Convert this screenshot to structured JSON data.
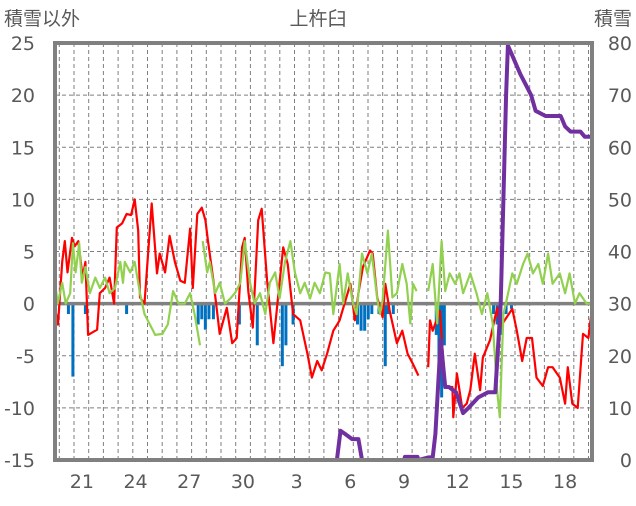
{
  "chart_data": {
    "type": "line",
    "title": "上杵臼",
    "left_axis_label": "積雪以外",
    "right_axis_label": "積雪",
    "ylim_left": [
      -15,
      25
    ],
    "yticks_left": [
      25,
      20,
      15,
      10,
      5,
      0,
      -5,
      -10,
      -15
    ],
    "ylim_right": [
      0,
      80
    ],
    "yticks_right": [
      80,
      70,
      60,
      50,
      40,
      30,
      20,
      10,
      0
    ],
    "xlim_days": [
      0,
      30
    ],
    "x_tick_labels": [
      {
        "label": "21",
        "day": 1.5
      },
      {
        "label": "24",
        "day": 4.5
      },
      {
        "label": "27",
        "day": 7.5
      },
      {
        "label": "30",
        "day": 10.5
      },
      {
        "label": "3",
        "day": 13.5
      },
      {
        "label": "6",
        "day": 16.5
      },
      {
        "label": "9",
        "day": 19.5
      },
      {
        "label": "12",
        "day": 22.5
      },
      {
        "label": "15",
        "day": 25.5
      },
      {
        "label": "18",
        "day": 28.5
      }
    ],
    "grid": true,
    "colors": {
      "red": "#ff0000",
      "green": "#92d050",
      "blue": "#0070c0",
      "purple": "#7030a0",
      "frame": "#808080"
    },
    "series": [
      {
        "name": "red",
        "axis": "left",
        "type": "line",
        "points": [
          [
            0,
            -0.4
          ],
          [
            0.17,
            -2
          ],
          [
            0.4,
            4
          ],
          [
            0.55,
            6
          ],
          [
            0.7,
            3
          ],
          [
            0.95,
            6.3
          ],
          [
            1.1,
            5.5
          ],
          [
            1.3,
            6
          ],
          [
            1.55,
            2.5
          ],
          [
            1.7,
            4
          ],
          [
            1.85,
            -3
          ],
          [
            2.05,
            -2.8
          ],
          [
            2.35,
            -2.5
          ],
          [
            2.5,
            1
          ],
          [
            2.8,
            1.5
          ],
          [
            3.05,
            2.5
          ],
          [
            3.3,
            0
          ],
          [
            3.45,
            7.3
          ],
          [
            3.75,
            7.7
          ],
          [
            4.0,
            8.6
          ],
          [
            4.25,
            8.5
          ],
          [
            4.45,
            10
          ],
          [
            4.65,
            7
          ],
          [
            4.75,
            0.6
          ],
          [
            5.0,
            0
          ],
          [
            5.4,
            9.6
          ],
          [
            5.7,
            2.9
          ],
          [
            5.85,
            4.8
          ],
          [
            6.15,
            3
          ],
          [
            6.4,
            6.5
          ],
          [
            6.7,
            4
          ],
          [
            7.0,
            2.2
          ],
          [
            7.25,
            2
          ],
          [
            7.55,
            7.2
          ],
          [
            7.7,
            1.5
          ],
          [
            7.95,
            8.6
          ],
          [
            8.2,
            9.2
          ],
          [
            8.4,
            8
          ],
          [
            8.55,
            6
          ],
          [
            8.85,
            2.2
          ],
          [
            9.2,
            -2.9
          ],
          [
            9.6,
            -0.4
          ],
          [
            9.9,
            -3.8
          ],
          [
            10.15,
            -3.3
          ],
          [
            10.45,
            5.4
          ],
          [
            10.6,
            6.3
          ],
          [
            10.8,
            1.2
          ],
          [
            11.05,
            -2.3
          ],
          [
            11.35,
            8
          ],
          [
            11.55,
            9.1
          ],
          [
            11.85,
            2.2
          ],
          [
            12.2,
            -3.8
          ],
          [
            12.4,
            -0.4
          ],
          [
            12.75,
            5.4
          ],
          [
            13.0,
            3.8
          ],
          [
            13.3,
            -1
          ],
          [
            13.7,
            -1.6
          ],
          [
            14.1,
            -4.8
          ],
          [
            14.35,
            -7.1
          ],
          [
            14.65,
            -5.5
          ],
          [
            14.9,
            -6.4
          ],
          [
            15.2,
            -4.8
          ],
          [
            15.55,
            -2.6
          ],
          [
            15.8,
            -1.9
          ],
          [
            15.9,
            -1.6
          ],
          [
            16.5,
            1.9
          ],
          [
            16.75,
            -1.6
          ],
          [
            16.95,
            1
          ],
          [
            17.2,
            3.5
          ],
          [
            17.6,
            5.1
          ],
          [
            17.75,
            4.8
          ],
          [
            18.0,
            0.6
          ],
          [
            18.3,
            -1.3
          ],
          [
            18.45,
            1.9
          ],
          [
            18.7,
            -0.7
          ],
          [
            19.1,
            -3.8
          ],
          [
            19.4,
            -2.6
          ],
          [
            19.7,
            -4.8
          ],
          [
            20.0,
            -5.8
          ],
          [
            20.3,
            -6.9
          ],
          null,
          [
            20.85,
            -6.1
          ],
          [
            20.95,
            -1.6
          ],
          [
            21.1,
            -2.6
          ],
          [
            21.5,
            -0.7
          ],
          [
            21.8,
            -8
          ],
          [
            22.2,
            -8
          ],
          [
            22.25,
            -10.9
          ],
          [
            22.45,
            -6.7
          ],
          [
            22.75,
            -10
          ],
          [
            23.0,
            -9.6
          ],
          [
            23.2,
            -8.3
          ],
          [
            23.45,
            -4.8
          ],
          [
            23.75,
            -8.3
          ],
          [
            23.9,
            -5.2
          ],
          [
            24.3,
            -3.5
          ],
          [
            24.7,
            -0.4
          ],
          [
            24.85,
            -2.3
          ],
          [
            25.55,
            -0.5
          ],
          [
            25.8,
            -2.6
          ],
          [
            26.1,
            -5.5
          ],
          [
            26.35,
            -3.3
          ],
          [
            26.65,
            -3.3
          ],
          [
            26.9,
            -7.1
          ],
          [
            27.25,
            -7.9
          ],
          [
            27.55,
            -6.1
          ],
          [
            27.8,
            -6.1
          ],
          [
            28.2,
            -7.1
          ],
          [
            28.5,
            -9.6
          ],
          [
            28.65,
            -6.1
          ],
          [
            28.9,
            -9.6
          ],
          [
            29.2,
            -10
          ],
          [
            29.5,
            -2.9
          ],
          [
            29.8,
            -3.3
          ],
          [
            30,
            -0.4
          ]
        ]
      },
      {
        "name": "green",
        "axis": "left",
        "type": "line",
        "points": [
          [
            0,
            2
          ],
          [
            0.15,
            0
          ],
          [
            0.4,
            2
          ],
          [
            0.6,
            0
          ],
          [
            0.85,
            1
          ],
          [
            1.0,
            5.8
          ],
          [
            1.15,
            3
          ],
          [
            1.35,
            5.8
          ],
          [
            1.5,
            2
          ],
          [
            1.7,
            3.5
          ],
          [
            1.95,
            1
          ],
          [
            2.25,
            2.5
          ],
          [
            2.5,
            1.5
          ],
          [
            2.8,
            2.5
          ],
          [
            3.05,
            1
          ],
          [
            3.35,
            1.5
          ],
          [
            3.65,
            4
          ],
          [
            3.8,
            2
          ],
          [
            3.9,
            4
          ],
          [
            4.2,
            3
          ],
          [
            4.45,
            4
          ],
          [
            4.75,
            1
          ],
          [
            5.0,
            -1
          ],
          [
            5.3,
            -2
          ],
          [
            5.6,
            -3
          ],
          [
            6.0,
            -2.9
          ],
          [
            6.3,
            -2
          ],
          [
            6.6,
            1.2
          ],
          [
            6.9,
            0
          ],
          [
            7.25,
            0
          ],
          [
            7.55,
            1
          ],
          [
            7.8,
            -1
          ],
          [
            8.0,
            -3
          ],
          [
            8.1,
            -4
          ],
          null,
          [
            8.25,
            6
          ],
          [
            8.5,
            3
          ],
          [
            8.65,
            4
          ],
          [
            8.95,
            1
          ],
          [
            9.2,
            2
          ],
          [
            9.5,
            0
          ],
          [
            9.8,
            0.5
          ],
          [
            10.05,
            1
          ],
          [
            10.35,
            2
          ],
          [
            10.6,
            6
          ],
          [
            10.9,
            2
          ],
          [
            11.15,
            0
          ],
          [
            11.45,
            1
          ],
          [
            11.75,
            -1
          ],
          [
            12.0,
            2
          ],
          [
            12.3,
            3
          ],
          [
            12.55,
            0.5
          ],
          [
            12.85,
            4
          ],
          [
            13.15,
            6
          ],
          [
            13.4,
            3
          ],
          [
            13.7,
            1
          ],
          [
            13.95,
            2
          ],
          [
            14.25,
            0.5
          ],
          [
            14.5,
            2
          ],
          [
            14.8,
            1
          ],
          [
            15.1,
            3
          ],
          [
            15.35,
            2.9
          ],
          [
            15.55,
            -1
          ],
          [
            15.9,
            3.8
          ],
          [
            16.1,
            0
          ],
          [
            16.35,
            2.9
          ],
          [
            16.65,
            0
          ],
          [
            16.85,
            -1
          ],
          [
            17.15,
            4.8
          ],
          [
            17.45,
            2.9
          ],
          [
            17.7,
            4.8
          ],
          [
            18.0,
            0.5
          ],
          [
            18.15,
            -1
          ],
          [
            18.3,
            0.3
          ],
          [
            18.6,
            7
          ],
          [
            18.85,
            0.6
          ],
          [
            19.1,
            1
          ],
          [
            19.4,
            3.8
          ],
          [
            19.65,
            1.9
          ],
          [
            19.85,
            -1.9
          ],
          [
            20.0,
            1.9
          ],
          [
            20.2,
            1.2
          ],
          null,
          [
            20.85,
            1.2
          ],
          [
            21.1,
            3.8
          ],
          [
            21.35,
            -1.9
          ],
          [
            21.6,
            6
          ],
          [
            21.8,
            1.2
          ],
          [
            22.05,
            2.9
          ],
          [
            22.35,
            1.9
          ],
          [
            22.6,
            2.9
          ],
          [
            22.8,
            1
          ],
          [
            23.2,
            2.9
          ],
          [
            23.55,
            1
          ],
          [
            23.85,
            -1
          ],
          [
            24.15,
            1
          ],
          [
            24.45,
            -1.9
          ],
          [
            24.7,
            -8.3
          ],
          [
            24.85,
            -10.9
          ],
          [
            25.05,
            -1
          ],
          [
            25.25,
            0.5
          ],
          [
            25.55,
            2.9
          ],
          [
            25.8,
            1.9
          ],
          [
            26.15,
            3.8
          ],
          [
            26.4,
            4.8
          ],
          [
            26.7,
            2.9
          ],
          [
            27.0,
            3.8
          ],
          [
            27.25,
            1.9
          ],
          [
            27.55,
            4.8
          ],
          [
            27.8,
            1.9
          ],
          [
            28.2,
            2.9
          ],
          [
            28.5,
            1
          ],
          [
            28.75,
            2.9
          ],
          [
            29.05,
            0
          ],
          [
            29.3,
            1
          ],
          [
            29.7,
            0
          ],
          [
            30,
            0
          ]
        ]
      },
      {
        "name": "blue",
        "axis": "left",
        "type": "bar",
        "points": [
          [
            0.75,
            -1
          ],
          [
            1.0,
            -7
          ],
          [
            1.7,
            -1
          ],
          [
            4.0,
            -1
          ],
          [
            8.0,
            -2
          ],
          [
            8.2,
            -1.5
          ],
          [
            8.4,
            -2.5
          ],
          [
            8.6,
            -1.5
          ],
          [
            8.85,
            -1.5
          ],
          [
            10.3,
            -2
          ],
          [
            11.3,
            -4
          ],
          [
            12.7,
            -6
          ],
          [
            12.9,
            -4
          ],
          [
            13.3,
            -2
          ],
          [
            16.9,
            -2
          ],
          [
            17.1,
            -2.6
          ],
          [
            17.3,
            -2.6
          ],
          [
            17.5,
            -1.5
          ],
          [
            17.7,
            -1
          ],
          [
            18.1,
            -1
          ],
          [
            18.45,
            -6
          ],
          [
            18.6,
            -1
          ],
          [
            18.9,
            -1
          ],
          [
            21.3,
            -3
          ],
          [
            21.45,
            -6
          ],
          [
            21.6,
            -9
          ],
          [
            21.75,
            -4
          ],
          [
            24.5,
            -1
          ],
          [
            24.7,
            -2
          ],
          [
            24.9,
            -3
          ],
          [
            25.2,
            -1
          ],
          [
            25.5,
            -0.5
          ]
        ]
      },
      {
        "name": "purple",
        "axis": "right",
        "type": "line",
        "points": [
          [
            0,
            0
          ],
          [
            15.75,
            0
          ],
          [
            15.95,
            5.6
          ],
          [
            16.2,
            5
          ],
          [
            16.6,
            4
          ],
          [
            16.95,
            4
          ],
          [
            17.15,
            0
          ],
          [
            19.5,
            0
          ],
          [
            19.55,
            0.6
          ],
          [
            20.25,
            0.6
          ],
          [
            20.3,
            0
          ],
          [
            20.85,
            0.5
          ],
          [
            21.1,
            0.5
          ],
          [
            21.25,
            5
          ],
          [
            21.55,
            23
          ],
          [
            21.8,
            14
          ],
          [
            22.0,
            14
          ],
          [
            22.4,
            13
          ],
          [
            22.8,
            9
          ],
          [
            23.1,
            10
          ],
          [
            23.65,
            12
          ],
          [
            24.2,
            13
          ],
          [
            24.6,
            13
          ],
          [
            24.9,
            30
          ],
          [
            25.2,
            70
          ],
          [
            25.3,
            79.5
          ],
          [
            25.5,
            78
          ],
          [
            25.75,
            76
          ],
          [
            26.0,
            74
          ],
          [
            26.3,
            72
          ],
          [
            26.6,
            70
          ],
          [
            26.85,
            67
          ],
          [
            27.4,
            66
          ],
          [
            28.25,
            66
          ],
          [
            28.5,
            64
          ],
          [
            28.8,
            63
          ],
          [
            29.35,
            63
          ],
          [
            29.6,
            62
          ],
          [
            29.9,
            62
          ],
          [
            30,
            62
          ]
        ]
      }
    ]
  }
}
